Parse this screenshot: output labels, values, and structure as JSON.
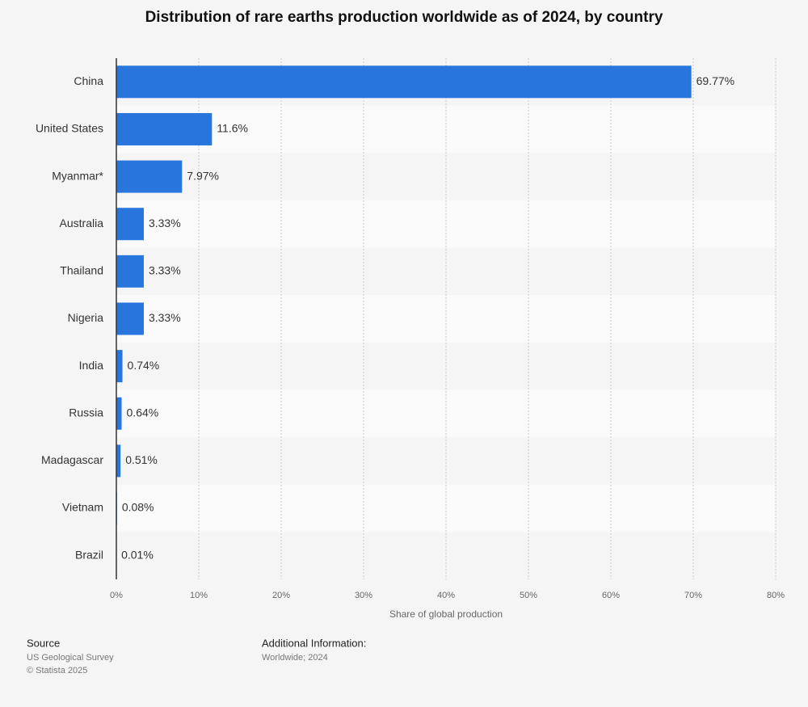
{
  "chart_data": {
    "type": "bar",
    "orientation": "horizontal",
    "title": "Distribution of rare earths production worldwide as of 2024, by country",
    "categories": [
      "China",
      "United States",
      "Myanmar*",
      "Australia",
      "Thailand",
      "Nigeria",
      "India",
      "Russia",
      "Madagascar",
      "Vietnam",
      "Brazil"
    ],
    "values": [
      69.77,
      11.6,
      7.97,
      3.33,
      3.33,
      3.33,
      0.74,
      0.64,
      0.51,
      0.08,
      0.01
    ],
    "value_labels": [
      "69.77%",
      "11.6%",
      "7.97%",
      "3.33%",
      "3.33%",
      "3.33%",
      "0.74%",
      "0.64%",
      "0.51%",
      "0.08%",
      "0.01%"
    ],
    "color": "#2876dd",
    "xlabel": "Share of global production",
    "xlim": [
      0,
      80
    ],
    "xticks": [
      {
        "value": 0,
        "label": "0%"
      },
      {
        "value": 10,
        "label": "10%"
      },
      {
        "value": 20,
        "label": "20%"
      },
      {
        "value": 30,
        "label": "30%"
      },
      {
        "value": 40,
        "label": "40%"
      },
      {
        "value": 50,
        "label": "50%"
      },
      {
        "value": 60,
        "label": "60%"
      },
      {
        "value": 70,
        "label": "70%"
      },
      {
        "value": 80,
        "label": "80%"
      }
    ],
    "grid": true
  },
  "footer": {
    "source_title": "Source",
    "source": "US Geological Survey",
    "copyright": "© Statista 2025",
    "info_title": "Additional Information:",
    "info": "Worldwide; 2024"
  }
}
